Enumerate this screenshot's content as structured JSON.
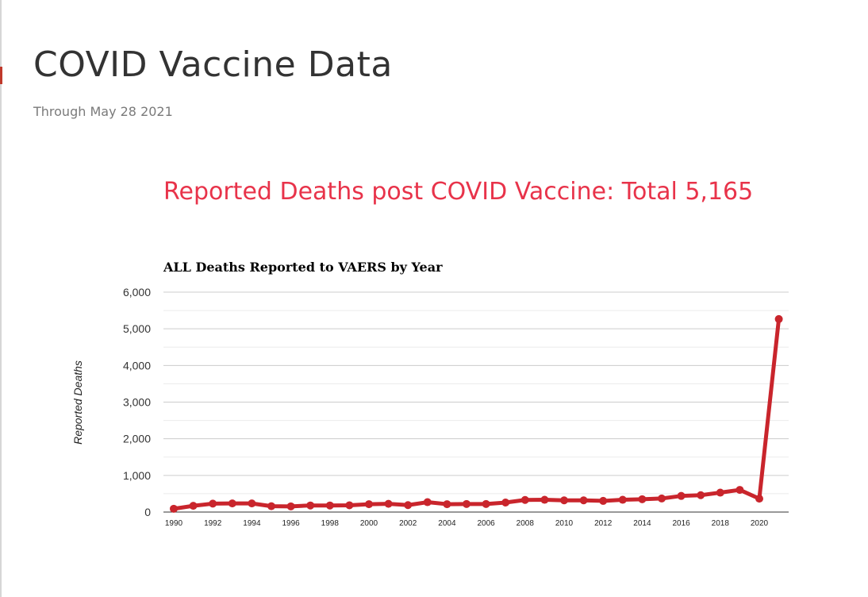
{
  "page": {
    "title": "COVID Vaccine Data",
    "subtitle": "Through May 28 2021",
    "heading": "Reported Deaths post COVID Vaccine: Total 5,165"
  },
  "colors": {
    "title": "#333333",
    "subtitle": "#7a7a7a",
    "heading": "#e8334a",
    "series": "#c9252c",
    "gridline": "#cccccc",
    "gridline_minor": "#ebebeb",
    "accent": "#c0392b"
  },
  "chart_data": {
    "type": "line",
    "title": "ALL Deaths Reported to VAERS by Year",
    "xlabel": "",
    "ylabel": "Reported Deaths",
    "ylim": [
      0,
      6000
    ],
    "y_ticks": [
      "0",
      "1,000",
      "2,000",
      "3,000",
      "4,000",
      "5,000",
      "6,000"
    ],
    "y_tick_values": [
      0,
      1000,
      2000,
      3000,
      4000,
      5000,
      6000
    ],
    "x_tick_labels": [
      "1990",
      "1992",
      "1994",
      "1996",
      "1998",
      "2000",
      "2002",
      "2004",
      "2006",
      "2008",
      "2010",
      "2012",
      "2014",
      "2016",
      "2018",
      "2020"
    ],
    "grid": true,
    "legend": "none",
    "series": [
      {
        "x": [
          1990,
          1991,
          1992,
          1993,
          1994,
          1995,
          1996,
          1997,
          1998,
          1999,
          2000,
          2001,
          2002,
          2003,
          2004,
          2005,
          2006,
          2007,
          2008,
          2009,
          2010,
          2011,
          2012,
          2013,
          2014,
          2015,
          2016,
          2017,
          2018,
          2019,
          2020,
          2021
        ],
        "values": [
          90,
          170,
          230,
          235,
          235,
          160,
          155,
          180,
          180,
          185,
          215,
          225,
          190,
          270,
          215,
          220,
          220,
          260,
          330,
          335,
          320,
          320,
          305,
          335,
          350,
          370,
          440,
          460,
          530,
          605,
          365,
          5265
        ]
      }
    ]
  }
}
